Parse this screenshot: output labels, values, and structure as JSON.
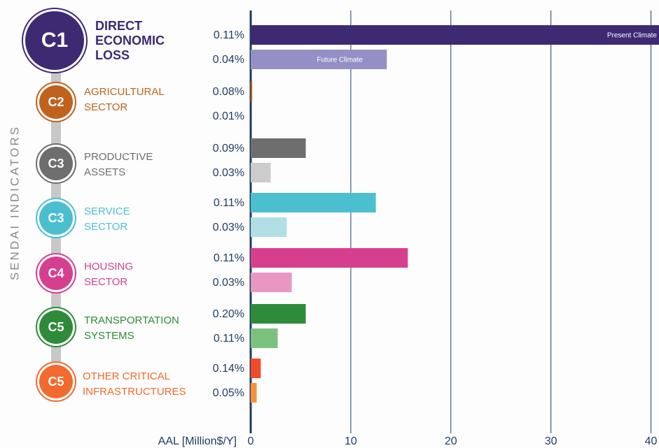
{
  "chart_data": {
    "type": "bar",
    "orientation": "horizontal",
    "side_title": "SENDAI INDICATORS",
    "x_label": "AAL [Million$/Y]",
    "codes": [
      "C1",
      "C2",
      "C3",
      "C3",
      "C4",
      "C5",
      "C5"
    ],
    "categories": [
      [
        "DIRECT",
        "ECONOMIC",
        "LOSS"
      ],
      [
        "AGRICULTURAL",
        "SECTOR"
      ],
      [
        "PRODUCTIVE",
        "ASSETS"
      ],
      [
        "SERVICE",
        "SECTOR"
      ],
      [
        "HOUSING",
        "SECTOR"
      ],
      [
        "TRANSPORTATION",
        "SYSTEMS"
      ],
      [
        "OTHER  CRITICAL",
        "INFRASTRUCTURES"
      ]
    ],
    "category_colors": [
      "#3d2a73",
      "#c0621e",
      "#6e6e6e",
      "#4bbfd0",
      "#d63f8e",
      "#2e8b3a",
      "#f26a2e"
    ],
    "series": [
      {
        "name": "Present Climate",
        "colors": [
          "#3d2a73",
          "#c0621e",
          "#6e6e6e",
          "#4bbfd0",
          "#d63f8e",
          "#2e8b3a",
          "#f04b2c"
        ],
        "values": [
          40.8,
          0.15,
          5.5,
          12.5,
          15.7,
          5.5,
          1.0
        ],
        "percent_labels": [
          "0.11%",
          "0.08%",
          "0.09%",
          "0.11%",
          "0.11%",
          "0.20%",
          "0.14%"
        ]
      },
      {
        "name": "Future Climate",
        "colors": [
          "#9490c6",
          "#e8a06a",
          "#cccccc",
          "#b0dfe6",
          "#e897c2",
          "#7cc27f",
          "#f5923e"
        ],
        "values": [
          13.6,
          0,
          2.0,
          3.6,
          4.1,
          2.7,
          0.6
        ],
        "percent_labels": [
          "0.04%",
          "0.01%",
          "0.03%",
          "0.03%",
          "0.03%",
          "0.11%",
          "0.05%"
        ]
      }
    ],
    "xlim": [
      0,
      40.8
    ],
    "xticks": [
      0,
      10,
      20,
      30,
      40
    ],
    "grid": true
  }
}
